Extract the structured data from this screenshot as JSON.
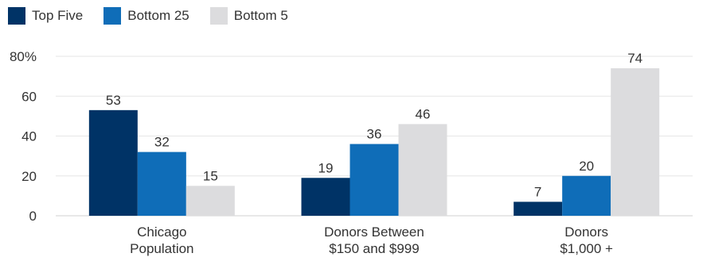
{
  "chart_data": {
    "type": "bar",
    "categories": [
      [
        "Chicago",
        "Population"
      ],
      [
        "Donors Between",
        "$150 and $999"
      ],
      [
        "Donors",
        "$1,000 +"
      ]
    ],
    "series": [
      {
        "name": "Top Five",
        "color": "#003366",
        "values": [
          53,
          19,
          7
        ]
      },
      {
        "name": "Bottom 25",
        "color": "#0f6db8",
        "values": [
          32,
          36,
          20
        ]
      },
      {
        "name": "Bottom 5",
        "color": "#dcdcde",
        "values": [
          15,
          46,
          74
        ]
      }
    ],
    "ylim": [
      0,
      80
    ],
    "yticks": [
      "0",
      "20",
      "40",
      "60",
      "80%"
    ],
    "ytick_values": [
      0,
      20,
      40,
      60,
      80
    ],
    "grid": true,
    "legend_position": "top-left"
  }
}
